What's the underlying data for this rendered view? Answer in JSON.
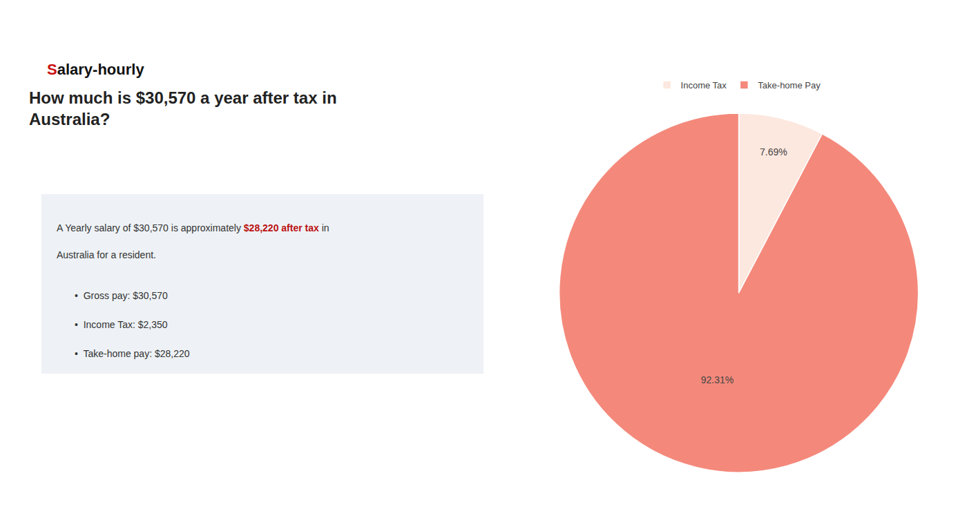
{
  "chart_data": {
    "type": "pie",
    "title": [
      "How much is $30,570 a year after tax in",
      "Australia?"
    ],
    "categories": [
      "Income Tax",
      "Take-home Pay"
    ],
    "values": [
      7.69,
      92.31
    ],
    "value_labels": [
      "7.69%",
      "92.31%"
    ],
    "colors": [
      "#fce8df",
      "#f4897b"
    ],
    "data_labels": true,
    "legend": "top",
    "annotations": [
      [
        {
          "text": "S",
          "color": "#cc1111"
        },
        "alary-hourly"
      ],
      [
        "A Yearly salary of $30,570 is approximately ",
        {
          "text": "$28,220 after tax",
          "color": "#bb1111"
        },
        " in"
      ],
      [
        "Australia for a resident."
      ],
      [
        "•  Gross pay: $30,570"
      ],
      [
        "•  Income Tax: $2,350"
      ],
      [
        "•  Take-home pay: $28,220"
      ]
    ]
  }
}
